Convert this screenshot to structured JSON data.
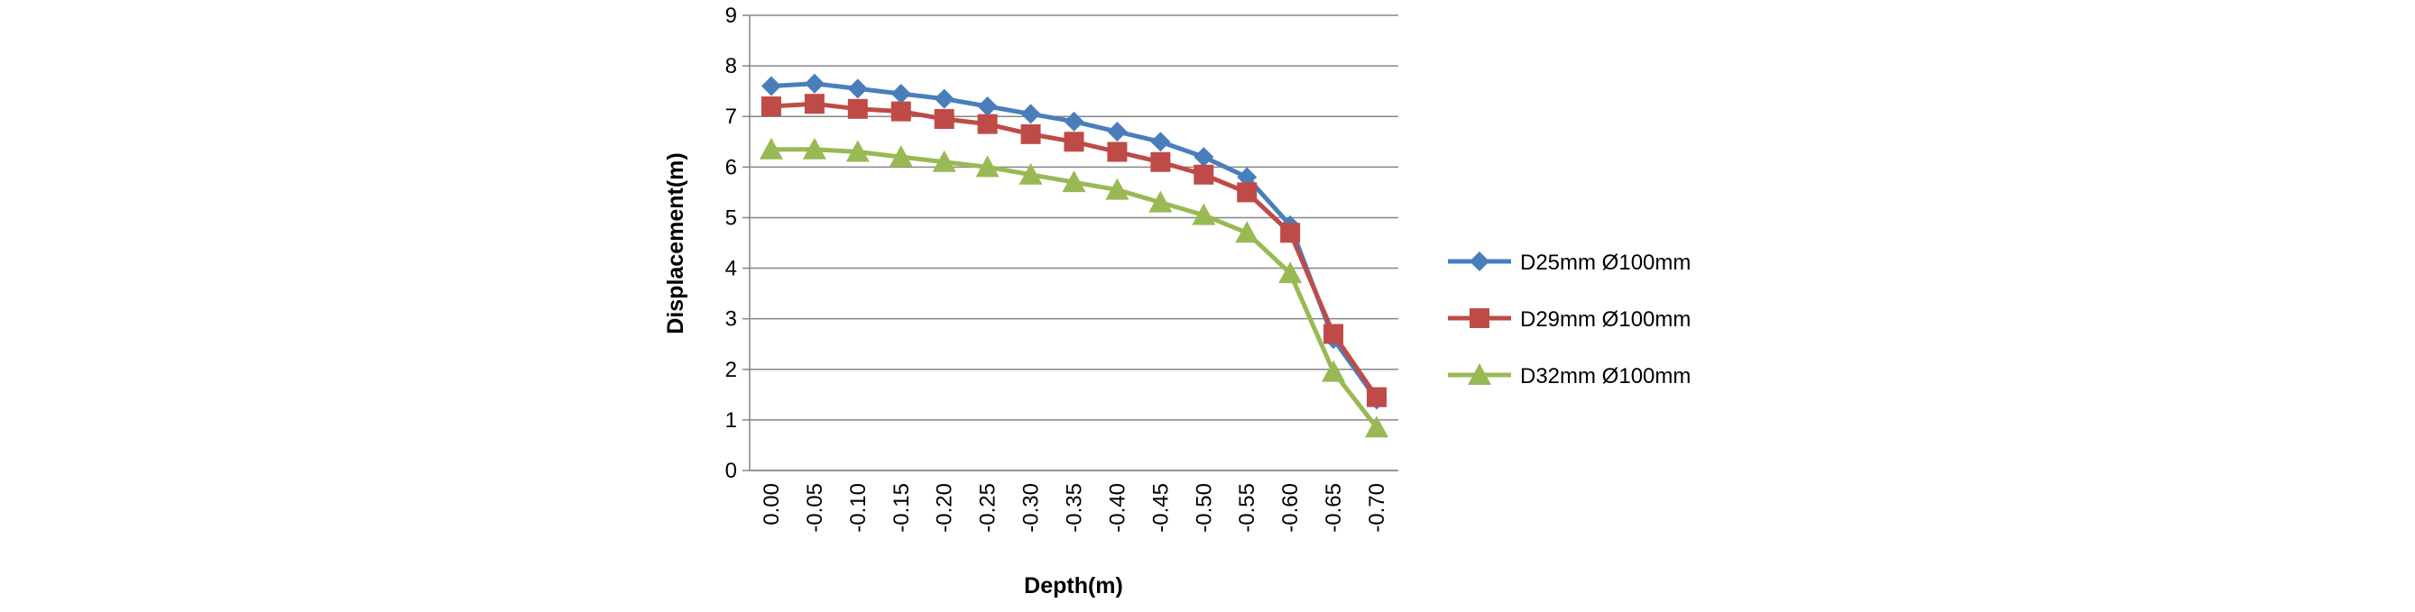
{
  "chart_data": {
    "type": "line",
    "x_label": "Depth(m)",
    "y_label": "Displacement(m)",
    "categories": [
      "0.00",
      "-0.05",
      "-0.10",
      "-0.15",
      "-0.20",
      "-0.25",
      "-0.30",
      "-0.35",
      "-0.40",
      "-0.45",
      "-0.50",
      "-0.55",
      "-0.60",
      "-0.65",
      "-0.70"
    ],
    "series": [
      {
        "name": "D25mm Ø100mm",
        "color": "#4a7ebb",
        "marker": "diamond",
        "values": [
          7.6,
          7.65,
          7.55,
          7.45,
          7.35,
          7.2,
          7.05,
          6.9,
          6.7,
          6.5,
          6.2,
          5.8,
          4.85,
          2.6,
          1.4
        ]
      },
      {
        "name": "D29mm Ø100mm",
        "color": "#be4b48",
        "marker": "square",
        "values": [
          7.2,
          7.25,
          7.15,
          7.1,
          6.95,
          6.85,
          6.65,
          6.5,
          6.3,
          6.1,
          5.85,
          5.5,
          4.7,
          2.7,
          1.45
        ]
      },
      {
        "name": "D32mm Ø100mm",
        "color": "#98b954",
        "marker": "triangle",
        "values": [
          6.35,
          6.35,
          6.3,
          6.2,
          6.1,
          6.0,
          5.85,
          5.7,
          5.55,
          5.3,
          5.05,
          4.7,
          3.9,
          1.95,
          0.85
        ]
      }
    ],
    "ylim": [
      0,
      9
    ],
    "yticks": [
      0,
      1,
      2,
      3,
      4,
      5,
      6,
      7,
      8,
      9
    ],
    "grid": true,
    "legend": "right"
  }
}
